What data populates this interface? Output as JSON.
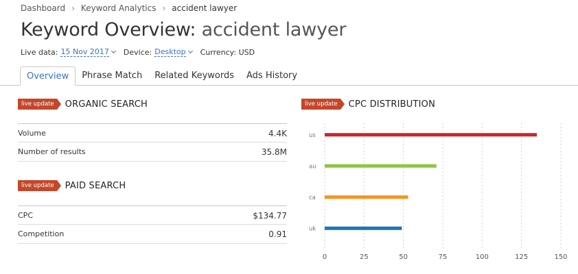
{
  "breadcrumb": {
    "items": [
      "Dashboard",
      "Keyword Analytics"
    ],
    "current": "accident lawyer"
  },
  "page": {
    "title_prefix": "Keyword Overview:",
    "keyword": "accident lawyer"
  },
  "meta": {
    "live_data_label": "Live data:",
    "live_data_value": "15 Nov 2017",
    "device_label": "Device:",
    "device_value": "Desktop",
    "currency_label": "Currency: USD"
  },
  "tabs": [
    {
      "label": "Overview",
      "active": true
    },
    {
      "label": "Phrase Match",
      "active": false
    },
    {
      "label": "Related Keywords",
      "active": false
    },
    {
      "label": "Ads History",
      "active": false
    }
  ],
  "badge_label": "live update",
  "organic": {
    "title": "ORGANIC SEARCH",
    "rows": [
      {
        "label": "Volume",
        "value": "4.4K"
      },
      {
        "label": "Number of results",
        "value": "35.8M"
      }
    ]
  },
  "paid": {
    "title": "PAID SEARCH",
    "rows": [
      {
        "label": "CPC",
        "value": "$134.77"
      },
      {
        "label": "Competition",
        "value": "0.91"
      }
    ]
  },
  "cpc_section": {
    "title": "CPC DISTRIBUTION"
  },
  "colors": {
    "badge": "#c4472a",
    "accent": "#3872c8",
    "us": "#c9252e",
    "au": "#8dc63f",
    "ca": "#f7941d",
    "uk": "#1a75bc"
  },
  "chart_data": {
    "type": "bar",
    "orientation": "horizontal",
    "categories": [
      "us",
      "au",
      "ca",
      "uk"
    ],
    "values": [
      134.77,
      71,
      53,
      49
    ],
    "colors": [
      "#c9252e",
      "#8dc63f",
      "#f7941d",
      "#1a75bc"
    ],
    "xlim": [
      0,
      150
    ],
    "xticks": [
      0,
      25,
      50,
      75,
      100,
      125,
      150
    ],
    "grid": "vertical-dashed"
  }
}
